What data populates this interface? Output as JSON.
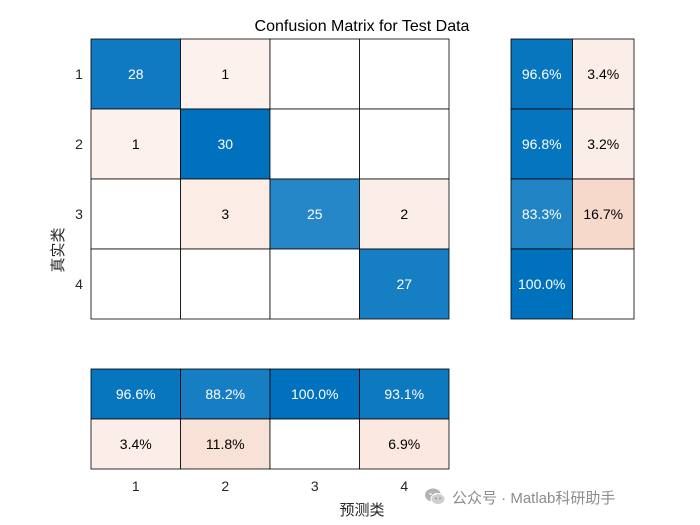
{
  "chart_data": {
    "type": "heatmap",
    "title": "Confusion Matrix for Test Data",
    "xlabel": "预测类",
    "ylabel": "真实类",
    "classes": [
      "1",
      "2",
      "3",
      "4"
    ],
    "matrix": [
      [
        28,
        1,
        0,
        0
      ],
      [
        1,
        30,
        0,
        0
      ],
      [
        0,
        3,
        25,
        2
      ],
      [
        0,
        0,
        0,
        27
      ]
    ],
    "row_summary": [
      [
        "96.6%",
        "3.4%"
      ],
      [
        "96.8%",
        "3.2%"
      ],
      [
        "83.3%",
        "16.7%"
      ],
      [
        "100.0%",
        ""
      ]
    ],
    "row_summary_values": [
      [
        96.6,
        3.4
      ],
      [
        96.8,
        3.2
      ],
      [
        83.3,
        16.7
      ],
      [
        100.0,
        0
      ]
    ],
    "column_summary": [
      [
        "96.6%",
        "88.2%",
        "100.0%",
        "93.1%"
      ],
      [
        "3.4%",
        "11.8%",
        "",
        "6.9%"
      ]
    ],
    "column_summary_values": [
      [
        96.6,
        88.2,
        100.0,
        93.1
      ],
      [
        3.4,
        11.8,
        0,
        6.9
      ]
    ],
    "colors": {
      "correct": "#0072BD",
      "incorrect": "#D95319",
      "border": "#000000"
    },
    "grid": true
  },
  "watermark": {
    "text": "公众号 · Matlab科研助手",
    "icon": "wechat-icon"
  }
}
